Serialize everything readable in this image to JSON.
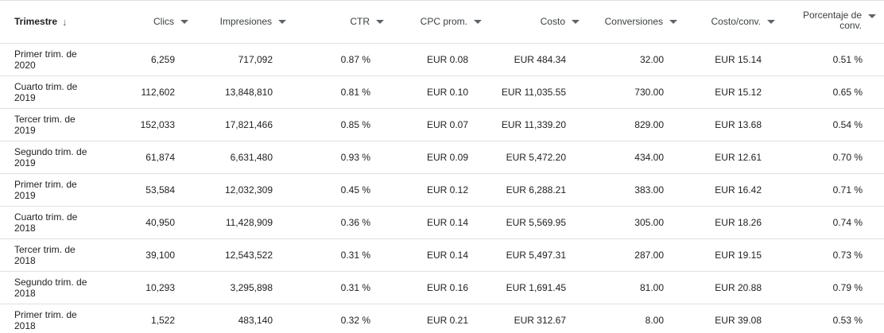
{
  "headers": {
    "quarter": "Trimestre",
    "clicks": "Clics",
    "impressions": "Impresiones",
    "ctr": "CTR",
    "avg_cpc": "CPC prom.",
    "cost": "Costo",
    "conversions": "Conversiones",
    "cost_per_conv": "Costo/conv.",
    "conv_rate_line1": "Porcentaje de",
    "conv_rate_line2": "conv."
  },
  "rows": [
    {
      "quarter_1": "Primer trim. de",
      "quarter_2": "2020",
      "clicks": "6,259",
      "impressions": "717,092",
      "ctr": "0.87 %",
      "avg_cpc": "EUR 0.08",
      "cost": "EUR 484.34",
      "conversions": "32.00",
      "cost_per_conv": "EUR 15.14",
      "conv_rate": "0.51 %"
    },
    {
      "quarter_1": "Cuarto trim. de",
      "quarter_2": "2019",
      "clicks": "112,602",
      "impressions": "13,848,810",
      "ctr": "0.81 %",
      "avg_cpc": "EUR 0.10",
      "cost": "EUR 11,035.55",
      "conversions": "730.00",
      "cost_per_conv": "EUR 15.12",
      "conv_rate": "0.65 %"
    },
    {
      "quarter_1": "Tercer trim. de",
      "quarter_2": "2019",
      "clicks": "152,033",
      "impressions": "17,821,466",
      "ctr": "0.85 %",
      "avg_cpc": "EUR 0.07",
      "cost": "EUR 11,339.20",
      "conversions": "829.00",
      "cost_per_conv": "EUR 13.68",
      "conv_rate": "0.54 %"
    },
    {
      "quarter_1": "Segundo trim. de",
      "quarter_2": "2019",
      "clicks": "61,874",
      "impressions": "6,631,480",
      "ctr": "0.93 %",
      "avg_cpc": "EUR 0.09",
      "cost": "EUR 5,472.20",
      "conversions": "434.00",
      "cost_per_conv": "EUR 12.61",
      "conv_rate": "0.70 %"
    },
    {
      "quarter_1": "Primer trim. de",
      "quarter_2": "2019",
      "clicks": "53,584",
      "impressions": "12,032,309",
      "ctr": "0.45 %",
      "avg_cpc": "EUR 0.12",
      "cost": "EUR 6,288.21",
      "conversions": "383.00",
      "cost_per_conv": "EUR 16.42",
      "conv_rate": "0.71 %"
    },
    {
      "quarter_1": "Cuarto trim. de",
      "quarter_2": "2018",
      "clicks": "40,950",
      "impressions": "11,428,909",
      "ctr": "0.36 %",
      "avg_cpc": "EUR 0.14",
      "cost": "EUR 5,569.95",
      "conversions": "305.00",
      "cost_per_conv": "EUR 18.26",
      "conv_rate": "0.74 %"
    },
    {
      "quarter_1": "Tercer trim. de",
      "quarter_2": "2018",
      "clicks": "39,100",
      "impressions": "12,543,522",
      "ctr": "0.31 %",
      "avg_cpc": "EUR 0.14",
      "cost": "EUR 5,497.31",
      "conversions": "287.00",
      "cost_per_conv": "EUR 19.15",
      "conv_rate": "0.73 %"
    },
    {
      "quarter_1": "Segundo trim. de",
      "quarter_2": "2018",
      "clicks": "10,293",
      "impressions": "3,295,898",
      "ctr": "0.31 %",
      "avg_cpc": "EUR 0.16",
      "cost": "EUR 1,691.45",
      "conversions": "81.00",
      "cost_per_conv": "EUR 20.88",
      "conv_rate": "0.79 %"
    },
    {
      "quarter_1": "Primer trim. de",
      "quarter_2": "2018",
      "clicks": "1,522",
      "impressions": "483,140",
      "ctr": "0.32 %",
      "avg_cpc": "EUR 0.21",
      "cost": "EUR 312.67",
      "conversions": "8.00",
      "cost_per_conv": "EUR 39.08",
      "conv_rate": "0.53 %"
    }
  ],
  "icons": {
    "sort": "arrow-down-icon",
    "dropdown": "caret-down-icon"
  }
}
